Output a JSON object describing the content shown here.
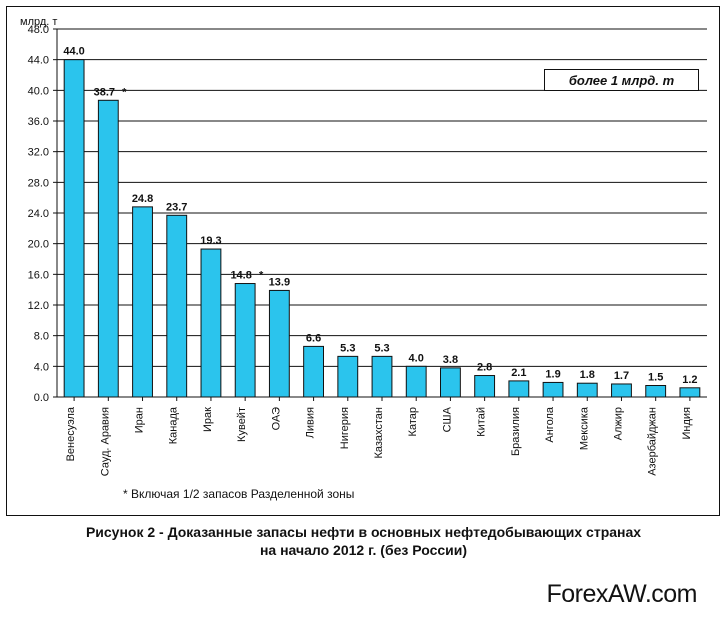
{
  "chart": {
    "type": "bar",
    "y_axis_label": "млрд. т",
    "ylim": [
      0,
      48
    ],
    "ytick_step": 4,
    "yticks": [
      "0.0",
      "4.0",
      "8.0",
      "12.0",
      "16.0",
      "20.0",
      "24.0",
      "28.0",
      "32.0",
      "36.0",
      "40.0",
      "44.0",
      "48.0"
    ],
    "categories": [
      "Венесуэла",
      "Сауд. Аравия",
      "Иран",
      "Канада",
      "Ирак",
      "Кувейт",
      "ОАЭ",
      "Ливия",
      "Нигерия",
      "Казахстан",
      "Катар",
      "США",
      "Китай",
      "Бразилия",
      "Ангола",
      "Мексика",
      "Алжир",
      "Азербайджан",
      "Индия"
    ],
    "values": [
      44.0,
      38.7,
      24.8,
      23.7,
      19.3,
      14.8,
      13.9,
      6.6,
      5.3,
      5.3,
      4.0,
      3.8,
      2.8,
      2.1,
      1.9,
      1.8,
      1.7,
      1.5,
      1.2
    ],
    "value_labels": [
      "44.0",
      "38.7",
      "24.8",
      "23.7",
      "19.3",
      "14.8",
      "13.9",
      "6.6",
      "5.3",
      "5.3",
      "4.0",
      "3.8",
      "2.8",
      "2.1",
      "1.9",
      "1.8",
      "1.7",
      "1.5",
      "1.2"
    ],
    "starred_indices": [
      1,
      5
    ],
    "bar_fill": "#2bc4ed",
    "bar_stroke": "#111111",
    "bar_width_ratio": 0.58,
    "background_color": "#ffffff",
    "grid_color": "#111111",
    "text_color": "#111111",
    "value_label_fontsize": 11,
    "tick_fontsize": 11
  },
  "legend": {
    "text": "более 1 млрд. т"
  },
  "footnote": {
    "text": "* Включая 1/2 запасов Разделенной зоны"
  },
  "caption": {
    "line1": "Рисунок 2 - Доказанные запасы нефти  в основных нефтедобывающих странах",
    "line2": "на начало 2012 г. (без России)"
  },
  "watermark": {
    "text": "ForexAW.com"
  }
}
